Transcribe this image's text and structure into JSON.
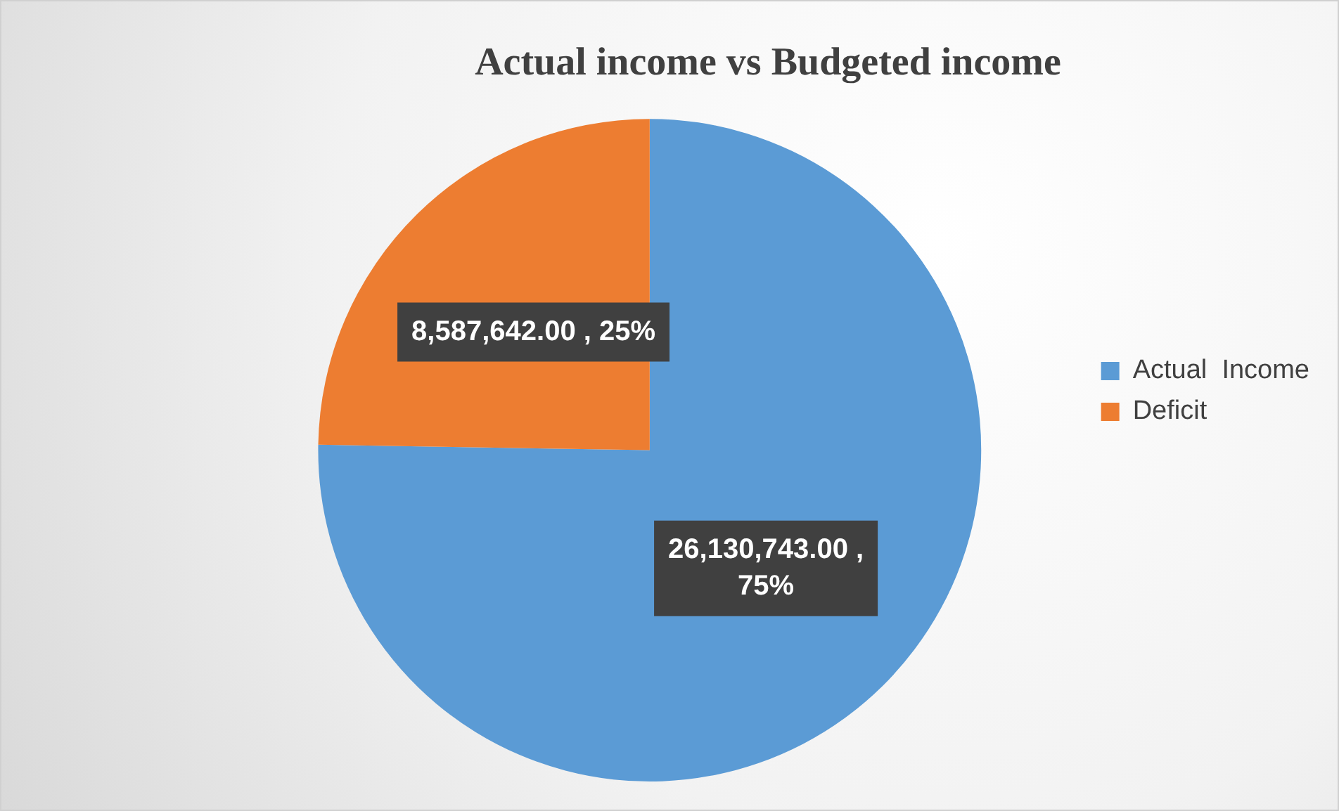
{
  "chart_data": {
    "type": "pie",
    "title": "Actual income vs Budgeted income",
    "categories": [
      "Actual  Income",
      "Deficit"
    ],
    "values": [
      26130743,
      8587642
    ],
    "colors": [
      "#5b9bd5",
      "#ed7d31"
    ],
    "value_labels": [
      "26,130,743.00 , 75%",
      "8,587,642.00 , 25%"
    ],
    "legend": "right"
  }
}
